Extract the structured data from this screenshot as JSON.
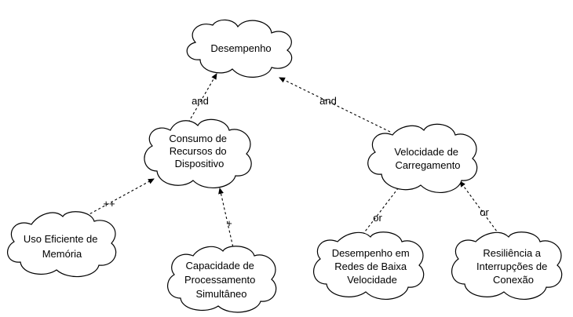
{
  "diagram": {
    "nodes": {
      "desempenho": {
        "lines": [
          "Desempenho"
        ]
      },
      "consumo": {
        "lines": [
          "Consumo de",
          "Recursos do",
          "Dispositivo"
        ]
      },
      "velocidade": {
        "lines": [
          "Velocidade de",
          "Carregamento"
        ]
      },
      "memoria": {
        "lines": [
          "Uso Eficiente de",
          "Memória"
        ]
      },
      "processamento": {
        "lines": [
          "Capacidade de",
          "Processamento",
          "Simultâneo"
        ]
      },
      "redes": {
        "lines": [
          "Desempenho em",
          "Redes de Baixa",
          "Velocidade"
        ]
      },
      "resiliencia": {
        "lines": [
          "Resiliência a",
          "Interrupções de",
          "Conexão"
        ]
      }
    },
    "edges": {
      "consumo_to_desempenho": {
        "from": "consumo",
        "to": "desempenho",
        "label": "and"
      },
      "velocidade_to_desempenho": {
        "from": "velocidade",
        "to": "desempenho",
        "label": "and"
      },
      "memoria_to_consumo": {
        "from": "memoria",
        "to": "consumo",
        "label": "++"
      },
      "processamento_to_consumo": {
        "from": "processamento",
        "to": "consumo",
        "label": "+"
      },
      "redes_to_velocidade": {
        "from": "redes",
        "to": "velocidade",
        "label": "or"
      },
      "resiliencia_to_velocidade": {
        "from": "resiliencia",
        "to": "velocidade",
        "label": "or"
      }
    },
    "colors": {
      "stroke": "#000000",
      "fill": "#ffffff"
    }
  }
}
